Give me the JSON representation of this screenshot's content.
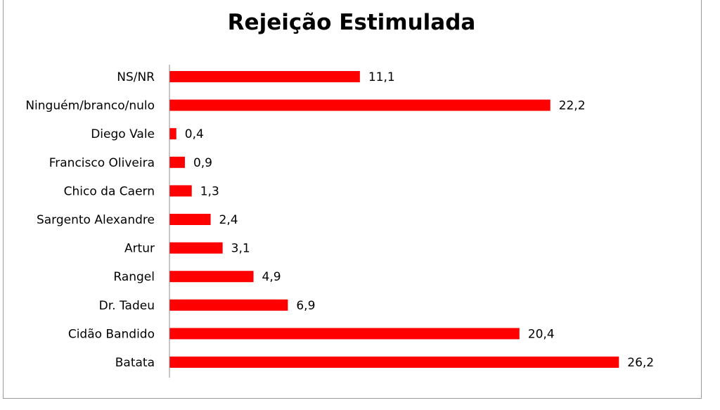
{
  "chart_data": {
    "type": "bar",
    "orientation": "horizontal",
    "title": "Rejeição Estimulada",
    "categories": [
      "NS/NR",
      "Ninguém/branco/nulo",
      "Diego Vale",
      "Francisco Oliveira",
      "Chico da Caern",
      "Sargento Alexandre",
      "Artur",
      "Rangel",
      "Dr. Tadeu",
      "Cidão Bandido",
      "Batata"
    ],
    "values": [
      11.1,
      22.2,
      0.4,
      0.9,
      1.3,
      2.4,
      3.1,
      4.9,
      6.9,
      20.4,
      26.2
    ],
    "value_labels": [
      "11,1",
      "22,2",
      "0,4",
      "0,9",
      "1,3",
      "2,4",
      "3,1",
      "4,9",
      "6,9",
      "20,4",
      "26,2"
    ],
    "bar_color": "#ff0000",
    "xlabel": "",
    "ylabel": "",
    "grid": false,
    "legend": "none"
  }
}
